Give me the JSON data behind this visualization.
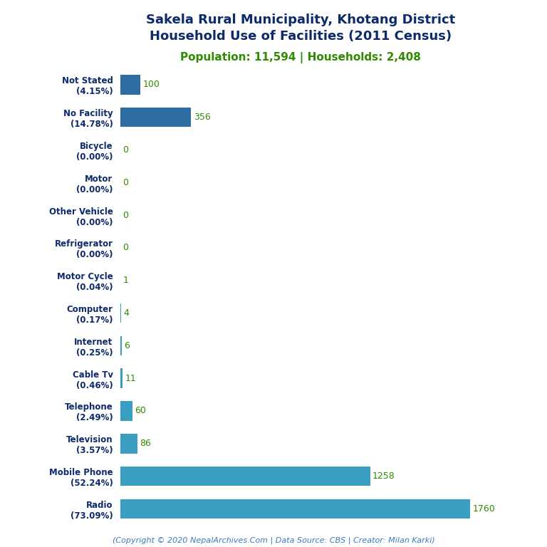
{
  "title_line1": "Sakela Rural Municipality, Khotang District",
  "title_line2": "Household Use of Facilities (2011 Census)",
  "subtitle": "Population: 11,594 | Households: 2,408",
  "footer": "(Copyright © 2020 NepalArchives.Com | Data Source: CBS | Creator: Milan Karki)",
  "categories": [
    "Not Stated\n(4.15%)",
    "No Facility\n(14.78%)",
    "Bicycle\n(0.00%)",
    "Motor\n(0.00%)",
    "Other Vehicle\n(0.00%)",
    "Refrigerator\n(0.00%)",
    "Motor Cycle\n(0.04%)",
    "Computer\n(0.17%)",
    "Internet\n(0.25%)",
    "Cable Tv\n(0.46%)",
    "Telephone\n(2.49%)",
    "Television\n(3.57%)",
    "Mobile Phone\n(52.24%)",
    "Radio\n(73.09%)"
  ],
  "values": [
    100,
    356,
    0,
    0,
    0,
    0,
    1,
    4,
    6,
    11,
    60,
    86,
    1258,
    1760
  ],
  "bar_color_dark": "#2e6da4",
  "bar_color_light": "#3a9ec2",
  "title_color": "#0d2a6b",
  "subtitle_color": "#2e8b00",
  "footer_color": "#3a7abf",
  "value_color": "#2e8b00",
  "background_color": "#ffffff",
  "xlim": [
    0,
    1900
  ]
}
